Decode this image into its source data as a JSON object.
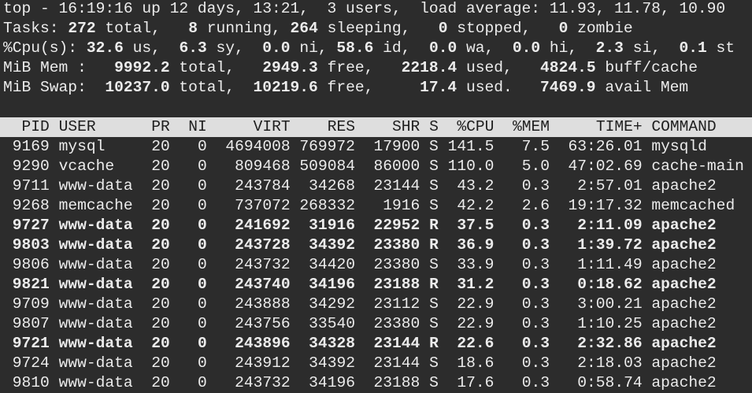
{
  "summary": [
    {
      "text": "top - 16:19:16 up 12 days, 13:21,  3 users,  load average: 11.93, 11.78, 10.90",
      "bold_numbers": false
    },
    {
      "text": "Tasks: 272 total,   8 running, 264 sleeping,   0 stopped,   0 zombie",
      "bold_numbers": true
    },
    {
      "text": "%Cpu(s): 32.6 us,  6.3 sy,  0.0 ni, 58.6 id,  0.0 wa,  0.0 hi,  2.3 si,  0.1 st",
      "bold_numbers": true
    },
    {
      "text": "MiB Mem :   9992.2 total,   2949.3 free,   2218.4 used,   4824.5 buff/cache",
      "bold_numbers": true
    },
    {
      "text": "MiB Swap:  10237.0 total,  10219.6 free,     17.4 used.   7469.9 avail Mem",
      "bold_numbers": true
    }
  ],
  "table": {
    "columns": [
      "PID",
      "USER",
      "PR",
      "NI",
      "VIRT",
      "RES",
      "SHR",
      "S",
      "%CPU",
      "%MEM",
      "TIME+",
      "COMMAND"
    ],
    "rows": [
      {
        "cells": [
          "9169",
          "mysql",
          "20",
          "0",
          "4694008",
          "769972",
          "17900",
          "S",
          "141.5",
          "7.5",
          "63:26.01",
          "mysqld"
        ],
        "bold": false
      },
      {
        "cells": [
          "9290",
          "vcache",
          "20",
          "0",
          "809468",
          "509084",
          "86000",
          "S",
          "110.0",
          "5.0",
          "47:02.69",
          "cache-main"
        ],
        "bold": false
      },
      {
        "cells": [
          "9711",
          "www-data",
          "20",
          "0",
          "243784",
          "34268",
          "23144",
          "S",
          "43.2",
          "0.3",
          "2:57.01",
          "apache2"
        ],
        "bold": false
      },
      {
        "cells": [
          "9268",
          "memcache",
          "20",
          "0",
          "737072",
          "268332",
          "1916",
          "S",
          "42.2",
          "2.6",
          "19:17.32",
          "memcached"
        ],
        "bold": false
      },
      {
        "cells": [
          "9727",
          "www-data",
          "20",
          "0",
          "241692",
          "31916",
          "22952",
          "R",
          "37.5",
          "0.3",
          "2:11.09",
          "apache2"
        ],
        "bold": true
      },
      {
        "cells": [
          "9803",
          "www-data",
          "20",
          "0",
          "243728",
          "34392",
          "23380",
          "R",
          "36.9",
          "0.3",
          "1:39.72",
          "apache2"
        ],
        "bold": true
      },
      {
        "cells": [
          "9806",
          "www-data",
          "20",
          "0",
          "243732",
          "34420",
          "23380",
          "S",
          "33.9",
          "0.3",
          "1:11.49",
          "apache2"
        ],
        "bold": false
      },
      {
        "cells": [
          "9821",
          "www-data",
          "20",
          "0",
          "243740",
          "34196",
          "23188",
          "R",
          "31.2",
          "0.3",
          "0:18.62",
          "apache2"
        ],
        "bold": true
      },
      {
        "cells": [
          "9709",
          "www-data",
          "20",
          "0",
          "243888",
          "34292",
          "23112",
          "S",
          "22.9",
          "0.3",
          "3:00.21",
          "apache2"
        ],
        "bold": false
      },
      {
        "cells": [
          "9807",
          "www-data",
          "20",
          "0",
          "243756",
          "33540",
          "23380",
          "S",
          "22.9",
          "0.3",
          "1:10.25",
          "apache2"
        ],
        "bold": false
      },
      {
        "cells": [
          "9721",
          "www-data",
          "20",
          "0",
          "243896",
          "34328",
          "23144",
          "R",
          "22.6",
          "0.3",
          "2:32.86",
          "apache2"
        ],
        "bold": true
      },
      {
        "cells": [
          "9724",
          "www-data",
          "20",
          "0",
          "243912",
          "34392",
          "23144",
          "S",
          "18.6",
          "0.3",
          "2:18.03",
          "apache2"
        ],
        "bold": false
      },
      {
        "cells": [
          "9810",
          "www-data",
          "20",
          "0",
          "243732",
          "34196",
          "23188",
          "S",
          "17.6",
          "0.3",
          "0:58.74",
          "apache2"
        ],
        "bold": false
      }
    ]
  }
}
